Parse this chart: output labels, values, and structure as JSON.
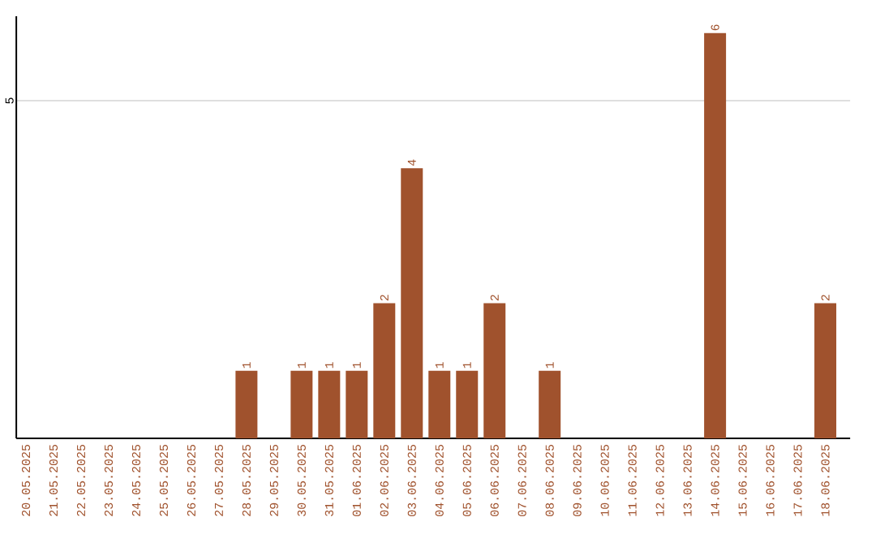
{
  "chart_data": {
    "type": "bar",
    "categories": [
      "20.05.2025",
      "21.05.2025",
      "22.05.2025",
      "23.05.2025",
      "24.05.2025",
      "25.05.2025",
      "26.05.2025",
      "27.05.2025",
      "28.05.2025",
      "29.05.2025",
      "30.05.2025",
      "31.05.2025",
      "01.06.2025",
      "02.06.2025",
      "03.06.2025",
      "04.06.2025",
      "05.06.2025",
      "06.06.2025",
      "07.06.2025",
      "08.06.2025",
      "09.06.2025",
      "10.06.2025",
      "11.06.2025",
      "12.06.2025",
      "13.06.2025",
      "14.06.2025",
      "15.06.2025",
      "16.06.2025",
      "17.06.2025",
      "18.06.2025"
    ],
    "values": [
      0,
      0,
      0,
      0,
      0,
      0,
      0,
      0,
      1,
      0,
      1,
      1,
      1,
      2,
      4,
      1,
      1,
      2,
      0,
      1,
      0,
      0,
      0,
      0,
      0,
      6,
      0,
      0,
      0,
      2
    ],
    "value_labels": [
      null,
      null,
      null,
      null,
      null,
      null,
      null,
      null,
      "1",
      null,
      "1",
      "1",
      "1",
      "2",
      "4",
      "1",
      "1",
      "2",
      null,
      "1",
      null,
      null,
      null,
      null,
      null,
      "6",
      null,
      null,
      null,
      "2"
    ],
    "color": "#a0522d",
    "ylim": [
      0,
      6.25
    ],
    "yticks": [
      5
    ],
    "grid": "y"
  }
}
